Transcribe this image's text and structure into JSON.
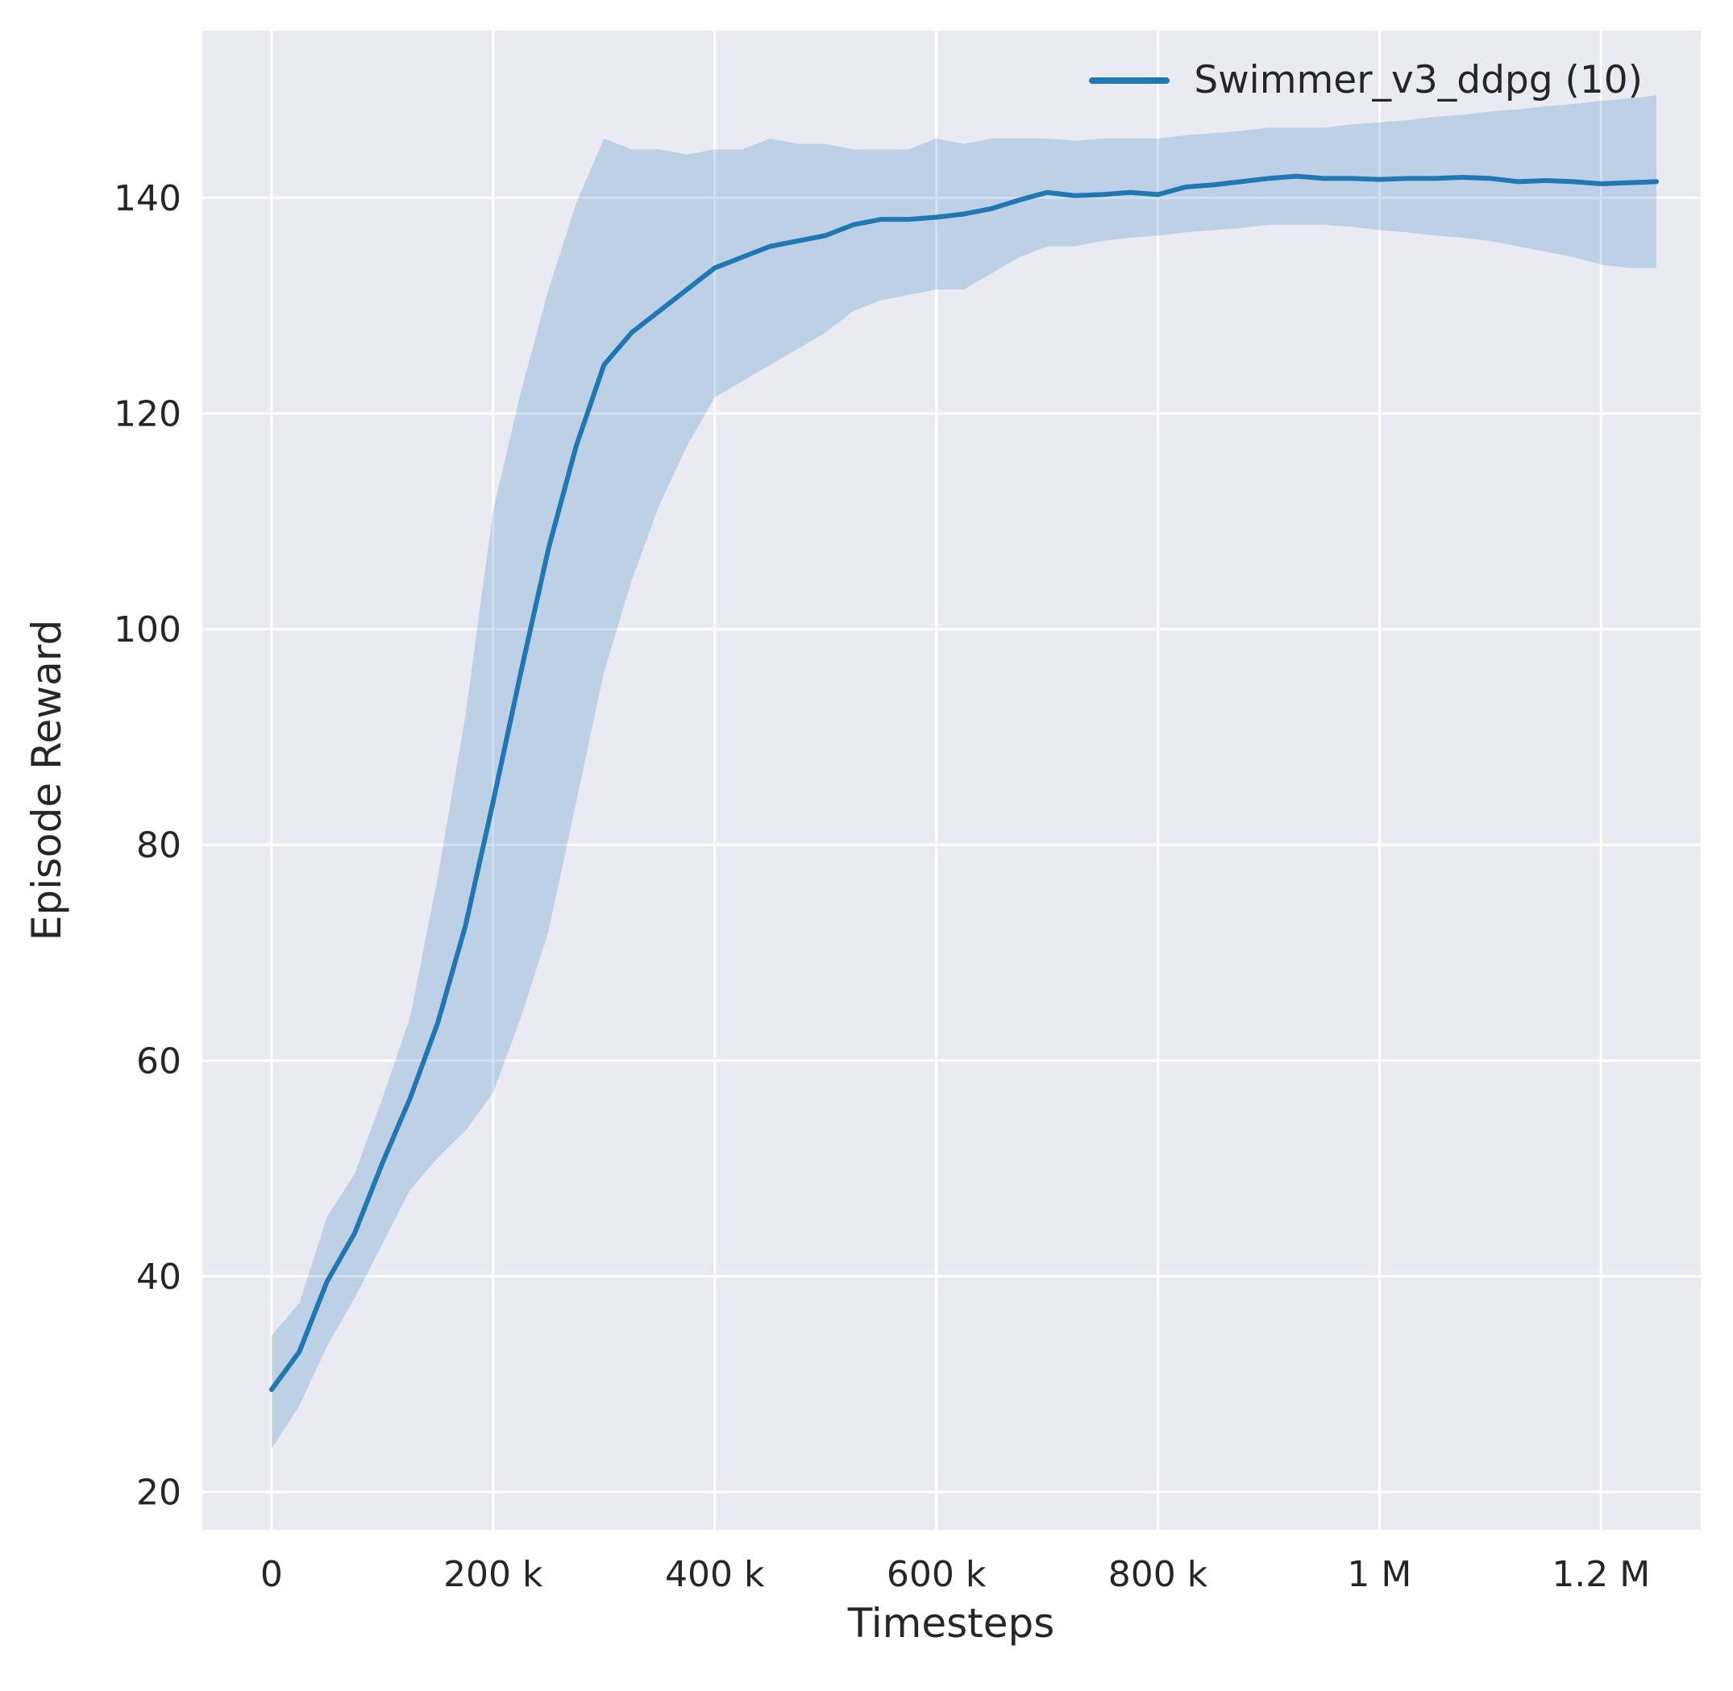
{
  "figure": {
    "background": "#ffffff"
  },
  "chart_data": {
    "type": "line",
    "title": "",
    "xlabel": "Timesteps",
    "ylabel": "Episode Reward",
    "axes_background": "#eaeaf2",
    "grid_color": "#ffffff",
    "text_color": "#262626",
    "grid_on": true,
    "legend": {
      "position": "upper right",
      "entries": [
        {
          "label": "Swimmer_v3_ddpg (10)",
          "color": "#1f77b4"
        }
      ]
    },
    "xlim": [
      -62500,
      1290000
    ],
    "ylim": [
      16.5,
      155.5
    ],
    "x_ticks": [
      0,
      200000,
      400000,
      600000,
      800000,
      1000000,
      1200000
    ],
    "x_tick_labels": [
      "0",
      "200 k",
      "400 k",
      "600 k",
      "800 k",
      "1 M",
      "1.2 M"
    ],
    "y_ticks": [
      20,
      40,
      60,
      80,
      100,
      120,
      140
    ],
    "y_tick_labels": [
      "20",
      "40",
      "60",
      "80",
      "100",
      "120",
      "140"
    ],
    "series": [
      {
        "name": "Swimmer_v3_ddpg (10)",
        "color": "#1f77b4",
        "band_alpha": 0.22,
        "line_width": 6,
        "x": [
          0,
          25000,
          50000,
          75000,
          100000,
          125000,
          150000,
          175000,
          200000,
          225000,
          250000,
          275000,
          300000,
          325000,
          350000,
          375000,
          400000,
          425000,
          450000,
          475000,
          500000,
          525000,
          550000,
          575000,
          600000,
          625000,
          650000,
          675000,
          700000,
          725000,
          750000,
          775000,
          800000,
          825000,
          850000,
          875000,
          900000,
          925000,
          950000,
          975000,
          1000000,
          1025000,
          1050000,
          1075000,
          1100000,
          1125000,
          1150000,
          1175000,
          1200000,
          1225000,
          1250000
        ],
        "mean": [
          29.5,
          33,
          39.5,
          44,
          50.5,
          56.5,
          63.5,
          72.5,
          84,
          96,
          107.5,
          117,
          124.5,
          127.5,
          129.5,
          131.5,
          133.5,
          134.5,
          135.5,
          136,
          136.5,
          137.5,
          138,
          138,
          138.2,
          138.5,
          139,
          139.8,
          140.5,
          140.2,
          140.3,
          140.5,
          140.3,
          141,
          141.2,
          141.5,
          141.8,
          142,
          141.8,
          141.8,
          141.7,
          141.8,
          141.8,
          141.9,
          141.8,
          141.5,
          141.6,
          141.5,
          141.3,
          141.4,
          141.5
        ],
        "lower": [
          24,
          28,
          33.5,
          38,
          43,
          48,
          51,
          53.5,
          57,
          64,
          72,
          84,
          96,
          104.5,
          111.5,
          117,
          121.5,
          123,
          124.5,
          126,
          127.5,
          129.5,
          130.5,
          131,
          131.5,
          131.5,
          133,
          134.5,
          135.5,
          135.5,
          136,
          136.3,
          136.5,
          136.8,
          137,
          137.2,
          137.5,
          137.5,
          137.5,
          137.3,
          137,
          136.8,
          136.5,
          136.3,
          136,
          135.5,
          135,
          134.5,
          133.8,
          133.5,
          133.5
        ],
        "upper": [
          34.5,
          37.5,
          45.5,
          49.5,
          56.5,
          64,
          77,
          92,
          111,
          122,
          131.5,
          139.5,
          145.5,
          144.5,
          144.5,
          144,
          144.5,
          144.5,
          145.5,
          145,
          145,
          144.5,
          144.5,
          144.5,
          145.5,
          145,
          145.5,
          145.5,
          145.5,
          145.3,
          145.5,
          145.5,
          145.5,
          145.8,
          146,
          146.2,
          146.5,
          146.5,
          146.5,
          146.8,
          147,
          147.2,
          147.5,
          147.7,
          148,
          148.2,
          148.5,
          148.7,
          149,
          149.2,
          149.5
        ]
      }
    ]
  }
}
